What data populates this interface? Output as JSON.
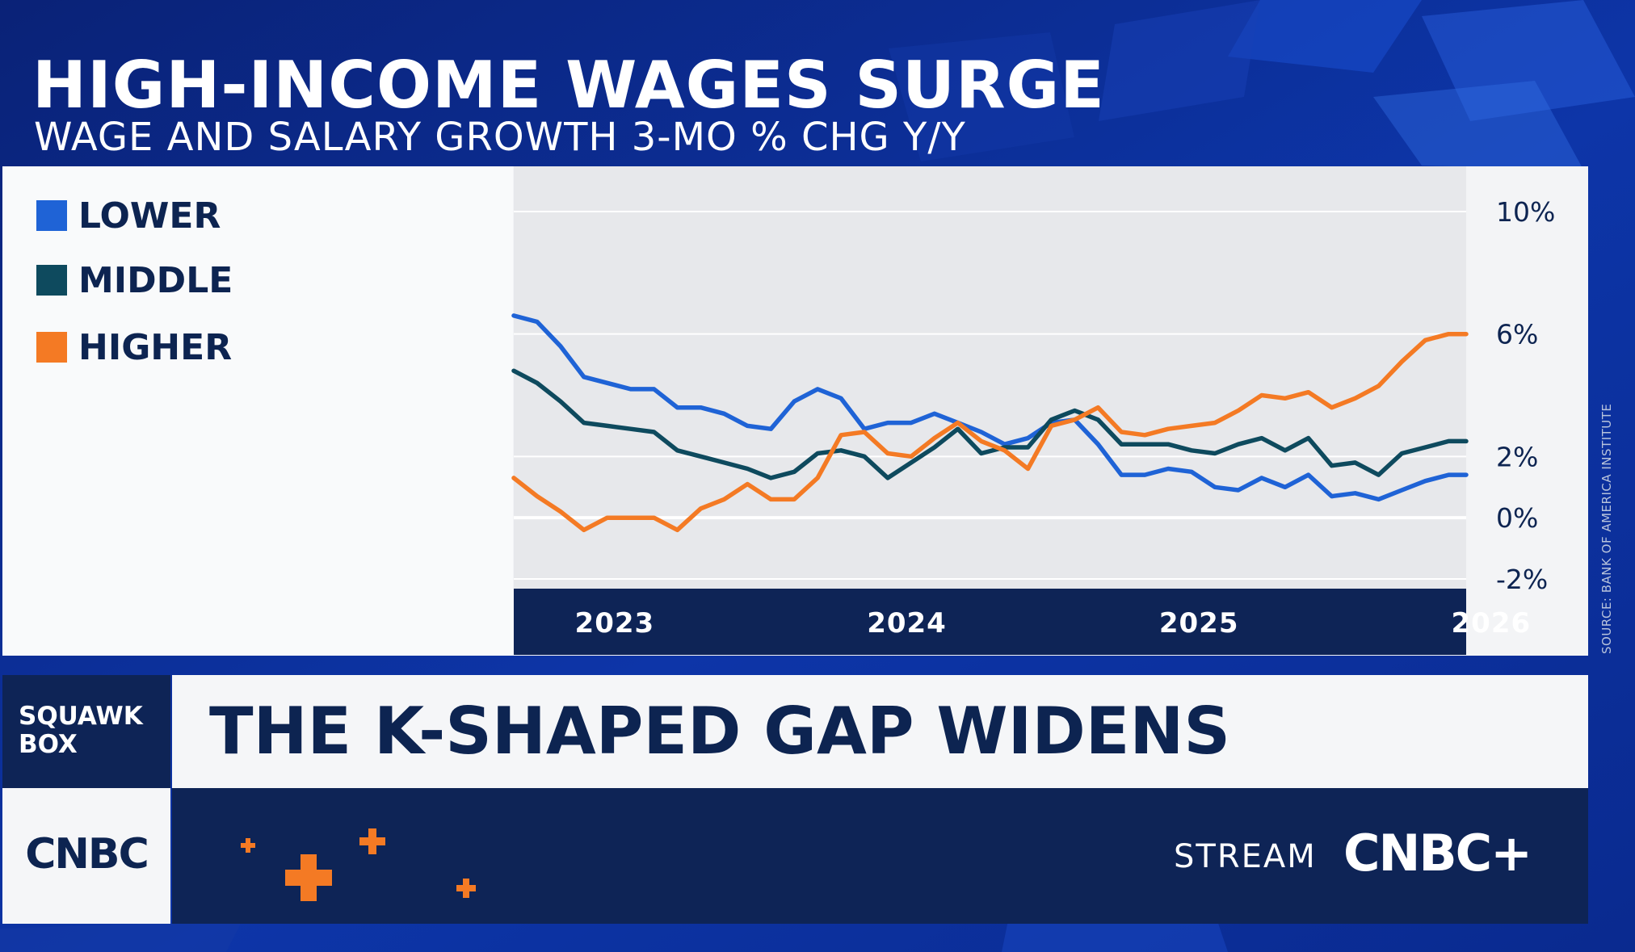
{
  "header": {
    "title": "HIGH-INCOME WAGES SURGE",
    "subtitle": "WAGE AND SALARY GROWTH 3-MO % CHG Y/Y"
  },
  "source_note": "SOURCE: BANK OF AMERICA INSTITUTE",
  "chart_data": {
    "type": "line",
    "title": "HIGH-INCOME WAGES SURGE",
    "subtitle": "WAGE AND SALARY GROWTH 3-MO % CHG Y/Y",
    "xlabel": "",
    "ylabel": "",
    "x_ticks": [
      "2023",
      "2024",
      "2025",
      "2026"
    ],
    "x_tick_positions": [
      2023.0,
      2024.0,
      2025.0,
      2026.0
    ],
    "xlim": [
      2022.84,
      2026.1
    ],
    "y_ticks": [
      "10%",
      "6%",
      "2%",
      "0%",
      "-2%"
    ],
    "y_tick_values": [
      10,
      6,
      2,
      0,
      -2
    ],
    "ylim": [
      -2,
      10
    ],
    "grid": true,
    "legend_position": "left",
    "x": [
      2022.84,
      2022.92,
      2023.0,
      2023.08,
      2023.16,
      2023.24,
      2023.32,
      2023.4,
      2023.48,
      2023.56,
      2023.64,
      2023.72,
      2023.8,
      2023.88,
      2023.96,
      2024.04,
      2024.12,
      2024.2,
      2024.28,
      2024.36,
      2024.44,
      2024.52,
      2024.6,
      2024.68,
      2024.76,
      2024.84,
      2024.92,
      2025.0,
      2025.08,
      2025.16,
      2025.24,
      2025.32,
      2025.4,
      2025.48,
      2025.56,
      2025.64,
      2025.72,
      2025.8,
      2025.88,
      2025.96,
      2026.04,
      2026.1
    ],
    "series": [
      {
        "name": "LOWER",
        "color": "#1f63d6",
        "values": [
          6.6,
          6.4,
          5.6,
          4.6,
          4.4,
          4.2,
          4.2,
          3.6,
          3.6,
          3.4,
          3.0,
          2.9,
          3.8,
          4.2,
          3.9,
          2.9,
          3.1,
          3.1,
          3.4,
          3.1,
          2.8,
          2.4,
          2.6,
          3.1,
          3.2,
          2.4,
          1.4,
          1.4,
          1.6,
          1.5,
          1.0,
          0.9,
          1.3,
          1.0,
          1.4,
          0.7,
          0.8,
          0.6,
          0.9,
          1.2,
          1.4,
          1.4
        ],
        "point_count": 42
      },
      {
        "name": "MIDDLE",
        "color": "#0e4a5e",
        "values": [
          4.8,
          4.4,
          3.8,
          3.1,
          3.0,
          2.9,
          2.8,
          2.2,
          2.0,
          1.8,
          1.6,
          1.3,
          1.5,
          2.1,
          2.2,
          2.0,
          1.3,
          1.8,
          2.3,
          2.9,
          2.1,
          2.3,
          2.3,
          3.2,
          3.5,
          3.2,
          2.4,
          2.4,
          2.4,
          2.2,
          2.1,
          2.4,
          2.6,
          2.2,
          2.6,
          1.7,
          1.8,
          1.4,
          2.1,
          2.3,
          2.5,
          2.5
        ],
        "point_count": 42
      },
      {
        "name": "HIGHER",
        "color": "#f47a24",
        "values": [
          1.3,
          0.7,
          0.2,
          -0.4,
          0.0,
          0.0,
          0.0,
          -0.4,
          0.3,
          0.6,
          1.1,
          0.6,
          0.6,
          1.3,
          2.7,
          2.8,
          2.1,
          2.0,
          2.6,
          3.1,
          2.5,
          2.2,
          1.6,
          3.0,
          3.2,
          3.6,
          2.8,
          2.7,
          2.9,
          3.0,
          3.1,
          3.5,
          4.0,
          3.9,
          4.1,
          3.6,
          3.9,
          4.3,
          5.1,
          5.8,
          6.0,
          6.0
        ],
        "point_count": 42
      }
    ]
  },
  "lower_third": {
    "show_name": "SQUAWK\nBOX",
    "headline": "THE K-SHAPED GAP WIDENS",
    "network_logo": "CNBC",
    "stream_label": "STREAM",
    "stream_brand": "CNBC+",
    "accent_color": "#f47a24"
  }
}
